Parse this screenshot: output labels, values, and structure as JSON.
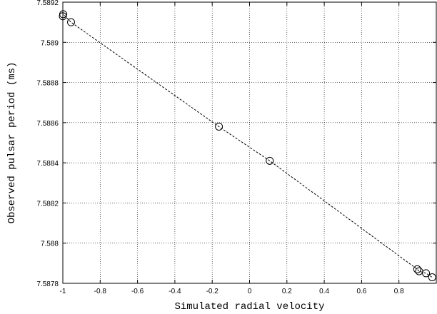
{
  "chart_data": {
    "type": "scatter",
    "title": "",
    "xlabel": "Simulated radial velocity",
    "ylabel": "Observed pulsar period (ms)",
    "xlim": [
      -1,
      1
    ],
    "ylim": [
      7.5878,
      7.5892
    ],
    "x_ticks": [
      -1,
      -0.8,
      -0.6,
      -0.4,
      -0.2,
      0,
      0.2,
      0.4,
      0.6,
      0.8
    ],
    "x_tick_labels": [
      "-1",
      "-0.8",
      "-0.6",
      "-0.4",
      "-0.2",
      "0",
      "0.2",
      "0.4",
      "0.6",
      "0.8"
    ],
    "y_ticks": [
      7.5878,
      7.588,
      7.5882,
      7.5884,
      7.5886,
      7.5888,
      7.589,
      7.5892
    ],
    "y_tick_labels": [
      "7.5878",
      "7.588",
      "7.5882",
      "7.5884",
      "7.5886",
      "7.5888",
      "7.589",
      "7.5892"
    ],
    "grid": true,
    "series": [
      {
        "marker": "open-circle",
        "line": "dashed",
        "color": "#000000",
        "points": [
          {
            "x": -1.0,
            "y": 7.58913
          },
          {
            "x": -0.998,
            "y": 7.58914
          },
          {
            "x": -0.956,
            "y": 7.5891
          },
          {
            "x": -0.164,
            "y": 7.58858
          },
          {
            "x": 0.108,
            "y": 7.58841
          },
          {
            "x": 0.898,
            "y": 7.58787
          },
          {
            "x": 0.908,
            "y": 7.58786
          },
          {
            "x": 0.945,
            "y": 7.58785
          },
          {
            "x": 0.978,
            "y": 7.58783
          }
        ]
      }
    ]
  }
}
